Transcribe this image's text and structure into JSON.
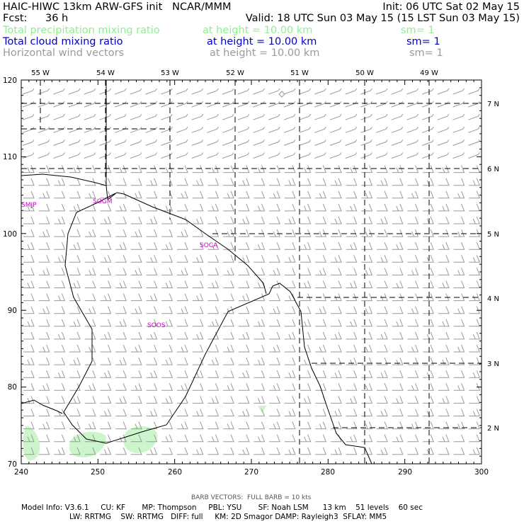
{
  "header": {
    "model_line": "HAIC-HIWC 13km ARW-GFS init   NCAR/MMM",
    "init_line": "Init: 06 UTC Sat 02 May 15",
    "fcst_label": "Fcst:",
    "fcst_value": "36 h",
    "valid_line": "Valid: 18 UTC Sun 03 May 15 (15 LST Sun 03 May 15)",
    "fields": [
      {
        "name": "Total precipitation mixing ratio",
        "height": "at height = 10.00 km",
        "sm": "sm= 1",
        "color": "#90ee90"
      },
      {
        "name": "Total cloud mixing ratio",
        "height": "at height = 10.00 km",
        "sm": "sm= 1",
        "color": "#0000cc"
      },
      {
        "name": "Horizontal wind vectors",
        "height": "at height = 10.00 km",
        "sm": "sm= 1",
        "color": "#9a9a9a"
      }
    ]
  },
  "map": {
    "lon_labels": [
      "55 W",
      "54 W",
      "53 W",
      "52 W",
      "51 W",
      "50 W",
      "49 W"
    ],
    "lat_labels": [
      "7 N",
      "6 N",
      "5 N",
      "4 N",
      "3 N",
      "2 N"
    ],
    "y_ticks": [
      "120",
      "110",
      "100",
      "90",
      "80",
      "70"
    ],
    "x_ticks": [
      "240",
      "250",
      "260",
      "270",
      "280",
      "290",
      "300"
    ],
    "stations": [
      "SMJP",
      "SOGM",
      "SOCA",
      "SOOS"
    ],
    "station_color": "#cc00cc",
    "coast_color": "#000000",
    "precip_color": "#ccf5cc"
  },
  "footer": {
    "barb_note": "BARB VECTORS:  FULL BARB = 10 kts",
    "line1": "Model Info: V3.6.1     CU: KF       MP: Thompson     PBL: YSU       SF: Noah LSM      13 km    51 levels    60 sec",
    "line2": "LW: RRTMG    SW: RRTMG   DIFF: full     KM: 2D Smagor DAMP: Rayleigh3  SFLAY: MM5"
  }
}
